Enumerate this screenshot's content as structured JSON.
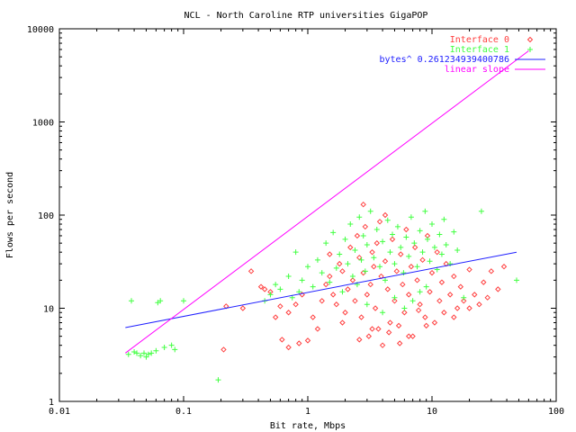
{
  "chart_data": {
    "type": "scatter",
    "title": "NCL - North Caroline RTP universities GigaPOP",
    "xlabel": "Bit rate, Mbps",
    "ylabel": "Flows per second",
    "x_scale": "log",
    "y_scale": "log",
    "xlim": [
      0.01,
      100
    ],
    "ylim": [
      1,
      10000
    ],
    "x_ticks": [
      "0.01",
      "0.1",
      "1",
      "10",
      "100"
    ],
    "x_tick_values": [
      0.01,
      0.1,
      1,
      10,
      100
    ],
    "y_ticks": [
      "1",
      "10",
      "100",
      "1000",
      "10000"
    ],
    "y_tick_values": [
      1,
      10,
      100,
      1000,
      10000
    ],
    "grid": false,
    "legend_placement": "top-right",
    "series": [
      {
        "name": "Interface 0",
        "kind": "points",
        "marker": "diamond",
        "color": "#ff4040",
        "points": [
          [
            0.21,
            3.6
          ],
          [
            0.22,
            10.5
          ],
          [
            0.3,
            10
          ],
          [
            0.42,
            17
          ],
          [
            0.45,
            16
          ],
          [
            0.5,
            15
          ],
          [
            0.6,
            10.5
          ],
          [
            0.7,
            9
          ],
          [
            0.8,
            11
          ],
          [
            0.9,
            14
          ],
          [
            0.62,
            4.6
          ],
          [
            0.7,
            3.8
          ],
          [
            0.85,
            4.2
          ],
          [
            1.0,
            4.5
          ],
          [
            1.1,
            8
          ],
          [
            1.2,
            6
          ],
          [
            1.3,
            12
          ],
          [
            1.4,
            18
          ],
          [
            1.5,
            22
          ],
          [
            1.6,
            14
          ],
          [
            1.7,
            11
          ],
          [
            1.8,
            30
          ],
          [
            1.9,
            25
          ],
          [
            2.0,
            9
          ],
          [
            2.1,
            16
          ],
          [
            2.2,
            45
          ],
          [
            2.3,
            20
          ],
          [
            2.4,
            12
          ],
          [
            2.5,
            60
          ],
          [
            2.6,
            35
          ],
          [
            2.7,
            8
          ],
          [
            2.8,
            24
          ],
          [
            2.9,
            75
          ],
          [
            3.0,
            14
          ],
          [
            3.1,
            5
          ],
          [
            3.2,
            18
          ],
          [
            3.3,
            40
          ],
          [
            3.4,
            28
          ],
          [
            3.5,
            10
          ],
          [
            3.6,
            50
          ],
          [
            3.7,
            6
          ],
          [
            3.8,
            85
          ],
          [
            3.9,
            22
          ],
          [
            4.0,
            4
          ],
          [
            4.2,
            32
          ],
          [
            4.4,
            16
          ],
          [
            4.6,
            7
          ],
          [
            4.8,
            55
          ],
          [
            5.0,
            12
          ],
          [
            5.2,
            25
          ],
          [
            5.4,
            6.5
          ],
          [
            5.6,
            38
          ],
          [
            5.8,
            18
          ],
          [
            6.0,
            9
          ],
          [
            6.2,
            70
          ],
          [
            6.5,
            14
          ],
          [
            6.8,
            28
          ],
          [
            7.0,
            5
          ],
          [
            7.3,
            45
          ],
          [
            7.6,
            20
          ],
          [
            8.0,
            11
          ],
          [
            8.4,
            33
          ],
          [
            8.8,
            8
          ],
          [
            9.2,
            60
          ],
          [
            9.6,
            15
          ],
          [
            10,
            24
          ],
          [
            10.5,
            7
          ],
          [
            11,
            40
          ],
          [
            11.5,
            12
          ],
          [
            12,
            19
          ],
          [
            12.5,
            9
          ],
          [
            13,
            30
          ],
          [
            14,
            14
          ],
          [
            15,
            22
          ],
          [
            16,
            10
          ],
          [
            17,
            17
          ],
          [
            18,
            12
          ],
          [
            20,
            26
          ],
          [
            22,
            14
          ],
          [
            24,
            11
          ],
          [
            26,
            19
          ],
          [
            28,
            13
          ],
          [
            30,
            25
          ],
          [
            34,
            16
          ],
          [
            38,
            28
          ],
          [
            4.5,
            5.5
          ],
          [
            5.5,
            4.2
          ],
          [
            6.5,
            5
          ],
          [
            3.3,
            6
          ],
          [
            2.6,
            4.6
          ],
          [
            1.9,
            7
          ],
          [
            9,
            6.5
          ],
          [
            7.8,
            9.5
          ],
          [
            15,
            8
          ],
          [
            20,
            10
          ],
          [
            2.8,
            130
          ],
          [
            4.2,
            100
          ],
          [
            1.5,
            38
          ],
          [
            0.55,
            8
          ],
          [
            0.35,
            25
          ]
        ]
      },
      {
        "name": "Interface 1",
        "kind": "points",
        "marker": "plus",
        "color": "#40ff40",
        "points": [
          [
            0.036,
            3.2
          ],
          [
            0.038,
            12
          ],
          [
            0.04,
            3.4
          ],
          [
            0.042,
            3.3
          ],
          [
            0.045,
            3.1
          ],
          [
            0.048,
            3.3
          ],
          [
            0.05,
            3.0
          ],
          [
            0.052,
            3.2
          ],
          [
            0.055,
            3.3
          ],
          [
            0.06,
            3.5
          ],
          [
            0.062,
            11.5
          ],
          [
            0.065,
            12
          ],
          [
            0.07,
            3.8
          ],
          [
            0.08,
            4
          ],
          [
            0.085,
            3.6
          ],
          [
            0.1,
            12
          ],
          [
            0.19,
            1.7
          ],
          [
            0.45,
            12
          ],
          [
            0.5,
            14
          ],
          [
            0.55,
            18
          ],
          [
            0.6,
            16
          ],
          [
            0.7,
            22
          ],
          [
            0.75,
            13
          ],
          [
            0.8,
            40
          ],
          [
            0.85,
            15
          ],
          [
            0.9,
            20
          ],
          [
            1.0,
            28
          ],
          [
            1.1,
            17
          ],
          [
            1.2,
            33
          ],
          [
            1.3,
            24
          ],
          [
            1.4,
            50
          ],
          [
            1.5,
            19
          ],
          [
            1.6,
            65
          ],
          [
            1.7,
            27
          ],
          [
            1.8,
            38
          ],
          [
            1.9,
            15
          ],
          [
            2.0,
            55
          ],
          [
            2.1,
            30
          ],
          [
            2.2,
            80
          ],
          [
            2.3,
            22
          ],
          [
            2.4,
            42
          ],
          [
            2.5,
            18
          ],
          [
            2.6,
            95
          ],
          [
            2.7,
            33
          ],
          [
            2.8,
            60
          ],
          [
            2.9,
            25
          ],
          [
            3.0,
            48
          ],
          [
            3.2,
            110
          ],
          [
            3.4,
            35
          ],
          [
            3.6,
            70
          ],
          [
            3.8,
            28
          ],
          [
            4.0,
            52
          ],
          [
            4.2,
            20
          ],
          [
            4.4,
            88
          ],
          [
            4.6,
            40
          ],
          [
            4.8,
            62
          ],
          [
            5.0,
            30
          ],
          [
            5.3,
            75
          ],
          [
            5.6,
            45
          ],
          [
            5.9,
            24
          ],
          [
            6.2,
            58
          ],
          [
            6.5,
            36
          ],
          [
            6.8,
            95
          ],
          [
            7.2,
            50
          ],
          [
            7.6,
            28
          ],
          [
            8.0,
            68
          ],
          [
            8.4,
            40
          ],
          [
            8.8,
            110
          ],
          [
            9.2,
            55
          ],
          [
            9.6,
            32
          ],
          [
            10,
            80
          ],
          [
            10.5,
            45
          ],
          [
            11,
            26
          ],
          [
            11.5,
            62
          ],
          [
            12,
            38
          ],
          [
            12.5,
            90
          ],
          [
            13,
            48
          ],
          [
            14,
            30
          ],
          [
            15,
            66
          ],
          [
            16,
            42
          ],
          [
            25,
            110
          ],
          [
            48,
            20
          ],
          [
            3.0,
            11
          ],
          [
            4.0,
            9
          ],
          [
            5.0,
            13
          ],
          [
            6.0,
            10
          ],
          [
            7.0,
            12
          ],
          [
            8.0,
            15
          ],
          [
            9.0,
            17
          ],
          [
            18,
            13
          ]
        ]
      },
      {
        "name": "bytes^ 0.261234939400786",
        "kind": "line",
        "color": "#2020ff",
        "points": [
          [
            0.034,
            6.2
          ],
          [
            48,
            40
          ]
        ]
      },
      {
        "name": "linear slope",
        "kind": "line",
        "color": "#ff00ff",
        "points": [
          [
            0.034,
            3.3
          ],
          [
            60,
            5800
          ]
        ]
      }
    ]
  }
}
